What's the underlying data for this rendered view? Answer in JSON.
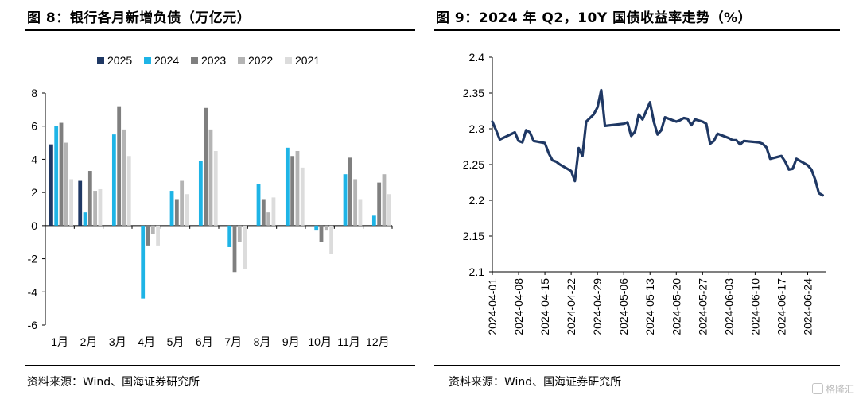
{
  "left": {
    "title": "图 8：银行各月新增负债（万亿元）",
    "source": "资料来源：Wind、国海证券研究所"
  },
  "right": {
    "title": "图 9：2024 年 Q2，10Y 国债收益率走势（%）",
    "source": "资料来源：Wind、国海证券研究所"
  },
  "watermark": "格隆汇",
  "chart_data": [
    {
      "type": "bar",
      "title": "图 8：银行各月新增负债（万亿元）",
      "categories": [
        "1月",
        "2月",
        "3月",
        "4月",
        "5月",
        "6月",
        "7月",
        "8月",
        "9月",
        "10月",
        "11月",
        "12月"
      ],
      "ylim": [
        -6,
        8
      ],
      "yticks": [
        8,
        6,
        4,
        2,
        0,
        -2,
        -4,
        -6
      ],
      "grid": false,
      "legend_position": "top",
      "series": [
        {
          "name": "2025",
          "color": "#1f3864",
          "values": [
            4.9,
            2.7,
            null,
            null,
            null,
            null,
            null,
            null,
            null,
            null,
            null,
            null
          ]
        },
        {
          "name": "2024",
          "color": "#1eb4e6",
          "values": [
            6.0,
            0.8,
            5.5,
            -4.4,
            2.1,
            3.9,
            -1.3,
            2.5,
            4.7,
            -0.3,
            3.1,
            0.6
          ]
        },
        {
          "name": "2023",
          "color": "#7f7f7f",
          "values": [
            6.2,
            3.3,
            7.2,
            -1.2,
            1.6,
            7.1,
            -2.8,
            1.6,
            4.2,
            -1.0,
            4.1,
            2.6
          ]
        },
        {
          "name": "2022",
          "color": "#b4b4b4",
          "values": [
            5.0,
            2.1,
            5.8,
            -0.5,
            2.7,
            5.8,
            -1.0,
            0.8,
            4.5,
            -0.3,
            2.8,
            3.1
          ]
        },
        {
          "name": "2021",
          "color": "#dcdcdc",
          "values": [
            2.8,
            2.2,
            4.2,
            -1.2,
            1.9,
            4.5,
            -2.6,
            1.7,
            3.5,
            -1.7,
            1.6,
            1.9
          ]
        }
      ]
    },
    {
      "type": "line",
      "title": "图 9：2024 年 Q2，10Y 国债收益率走势（%）",
      "ylim": [
        2.1,
        2.4
      ],
      "yticks": [
        "2.4",
        "2.35",
        "2.3",
        "2.25",
        "2.2",
        "2.15",
        "2.1"
      ],
      "xticks": [
        "2024-04-01",
        "2024-04-08",
        "2024-04-15",
        "2024-04-22",
        "2024-04-29",
        "2024-05-06",
        "2024-05-13",
        "2024-05-20",
        "2024-05-27",
        "2024-06-03",
        "2024-06-10",
        "2024-06-17",
        "2024-06-24"
      ],
      "grid": false,
      "series": [
        {
          "name": "10Y 国债收益率",
          "color": "#1f3864",
          "points": [
            [
              "2024-04-01",
              2.31
            ],
            [
              "2024-04-02",
              2.298
            ],
            [
              "2024-04-03",
              2.285
            ],
            [
              "2024-04-07",
              2.295
            ],
            [
              "2024-04-08",
              2.283
            ],
            [
              "2024-04-09",
              2.281
            ],
            [
              "2024-04-10",
              2.298
            ],
            [
              "2024-04-11",
              2.295
            ],
            [
              "2024-04-12",
              2.283
            ],
            [
              "2024-04-15",
              2.28
            ],
            [
              "2024-04-16",
              2.266
            ],
            [
              "2024-04-17",
              2.256
            ],
            [
              "2024-04-18",
              2.254
            ],
            [
              "2024-04-19",
              2.25
            ],
            [
              "2024-04-22",
              2.241
            ],
            [
              "2024-04-23",
              2.227
            ],
            [
              "2024-04-24",
              2.273
            ],
            [
              "2024-04-25",
              2.262
            ],
            [
              "2024-04-26",
              2.31
            ],
            [
              "2024-04-28",
              2.32
            ],
            [
              "2024-04-29",
              2.33
            ],
            [
              "2024-04-30",
              2.354
            ],
            [
              "2024-05-01",
              2.304
            ],
            [
              "2024-05-06",
              2.307
            ],
            [
              "2024-05-07",
              2.309
            ],
            [
              "2024-05-08",
              2.29
            ],
            [
              "2024-05-09",
              2.296
            ],
            [
              "2024-05-10",
              2.32
            ],
            [
              "2024-05-11",
              2.313
            ],
            [
              "2024-05-13",
              2.337
            ],
            [
              "2024-05-14",
              2.31
            ],
            [
              "2024-05-15",
              2.292
            ],
            [
              "2024-05-16",
              2.298
            ],
            [
              "2024-05-17",
              2.316
            ],
            [
              "2024-05-20",
              2.31
            ],
            [
              "2024-05-21",
              2.312
            ],
            [
              "2024-05-22",
              2.315
            ],
            [
              "2024-05-23",
              2.314
            ],
            [
              "2024-05-24",
              2.305
            ],
            [
              "2024-05-25",
              2.313
            ],
            [
              "2024-05-27",
              2.31
            ],
            [
              "2024-05-28",
              2.307
            ],
            [
              "2024-05-29",
              2.279
            ],
            [
              "2024-05-30",
              2.283
            ],
            [
              "2024-05-31",
              2.293
            ],
            [
              "2024-06-03",
              2.287
            ],
            [
              "2024-06-04",
              2.284
            ],
            [
              "2024-06-05",
              2.284
            ],
            [
              "2024-06-06",
              2.278
            ],
            [
              "2024-06-07",
              2.283
            ],
            [
              "2024-06-11",
              2.281
            ],
            [
              "2024-06-12",
              2.279
            ],
            [
              "2024-06-13",
              2.274
            ],
            [
              "2024-06-14",
              2.258
            ],
            [
              "2024-06-17",
              2.262
            ],
            [
              "2024-06-18",
              2.254
            ],
            [
              "2024-06-19",
              2.243
            ],
            [
              "2024-06-20",
              2.244
            ],
            [
              "2024-06-21",
              2.258
            ],
            [
              "2024-06-24",
              2.249
            ],
            [
              "2024-06-25",
              2.243
            ],
            [
              "2024-06-26",
              2.229
            ],
            [
              "2024-06-27",
              2.21
            ],
            [
              "2024-06-28",
              2.207
            ]
          ]
        }
      ]
    }
  ]
}
